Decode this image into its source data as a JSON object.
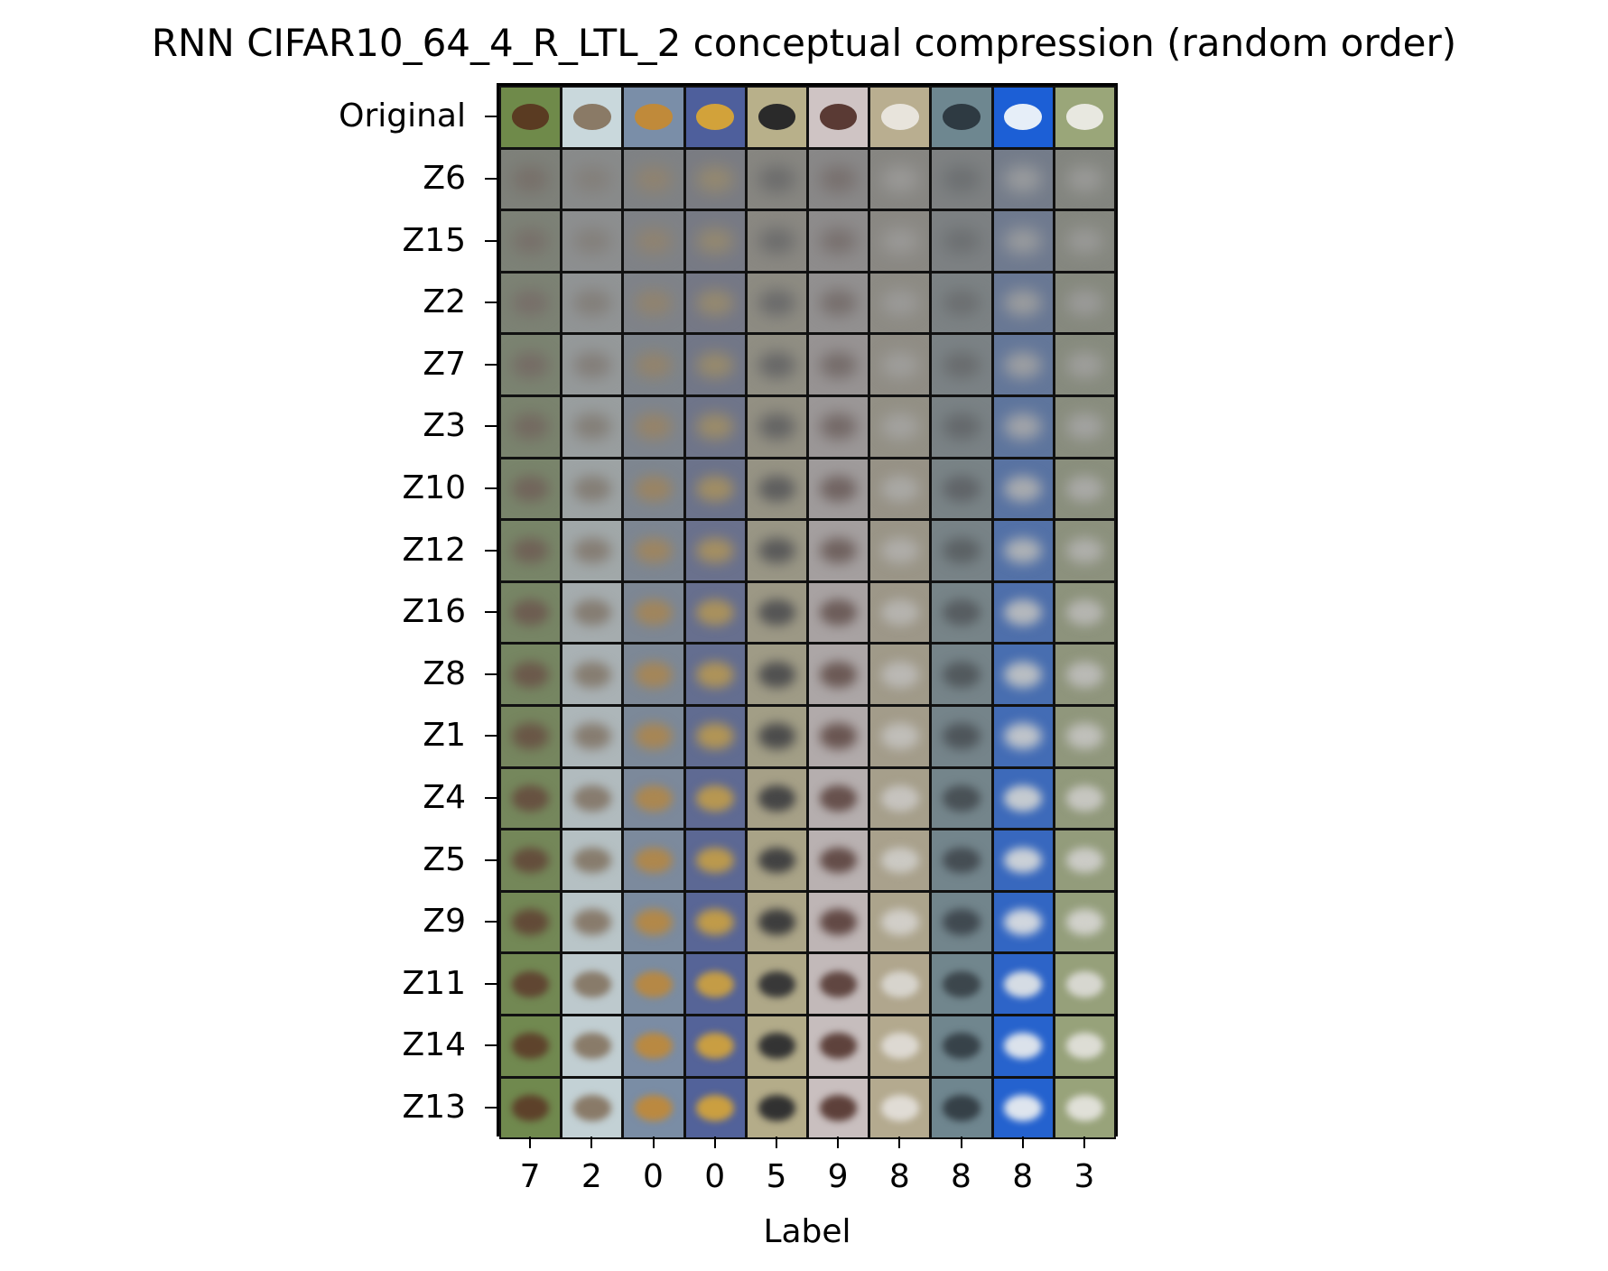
{
  "chart_data": {
    "type": "table",
    "title": "RNN CIFAR10_64_4_R_LTL_2 conceptual compression (random order)",
    "xlabel": "Label",
    "ylabel": "",
    "rows": [
      "Original",
      "Z6",
      "Z15",
      "Z2",
      "Z7",
      "Z3",
      "Z10",
      "Z12",
      "Z16",
      "Z8",
      "Z1",
      "Z4",
      "Z5",
      "Z9",
      "Z11",
      "Z14",
      "Z13"
    ],
    "columns": [
      "7",
      "2",
      "0",
      "0",
      "5",
      "9",
      "8",
      "8",
      "8",
      "3"
    ],
    "column_colors": [
      "#6f8a4a",
      "#c9d8dc",
      "#7a8ea8",
      "#4e5f9c",
      "#b8b08a",
      "#cfc4c4",
      "#b9ae90",
      "#6e8790",
      "#1c5fd6",
      "#9aa679"
    ],
    "column_accents": [
      "#5a3b22",
      "#8a7a66",
      "#c08a3a",
      "#d2a23a",
      "#2a2a2a",
      "#5a3a34",
      "#e8e4dc",
      "#2e3a42",
      "#e6eef8",
      "#e8e8e0"
    ]
  }
}
